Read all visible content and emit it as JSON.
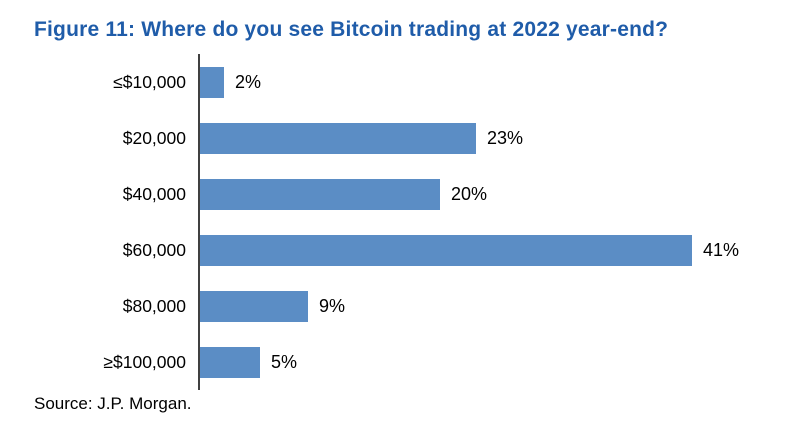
{
  "title": "Figure 11: Where do you see Bitcoin trading at 2022 year-end?",
  "source": "Source: J.P. Morgan.",
  "colors": {
    "bar": "#5B8DC5",
    "title": "#1F5CA9",
    "axis": "#404040"
  },
  "chart_data": {
    "type": "bar",
    "orientation": "horizontal",
    "title": "Figure 11: Where do you see Bitcoin trading at 2022 year-end?",
    "categories": [
      "≤$10,000",
      "$20,000",
      "$40,000",
      "$60,000",
      "$80,000",
      "≥$100,000"
    ],
    "values": [
      2,
      23,
      20,
      41,
      9,
      5
    ],
    "value_labels": [
      "2%",
      "23%",
      "20%",
      "41%",
      "9%",
      "5%"
    ],
    "xlabel": "",
    "ylabel": "",
    "xlim": [
      0,
      45
    ],
    "unit": "%",
    "grid": false,
    "legend": false,
    "source_note": "Source: J.P. Morgan."
  }
}
